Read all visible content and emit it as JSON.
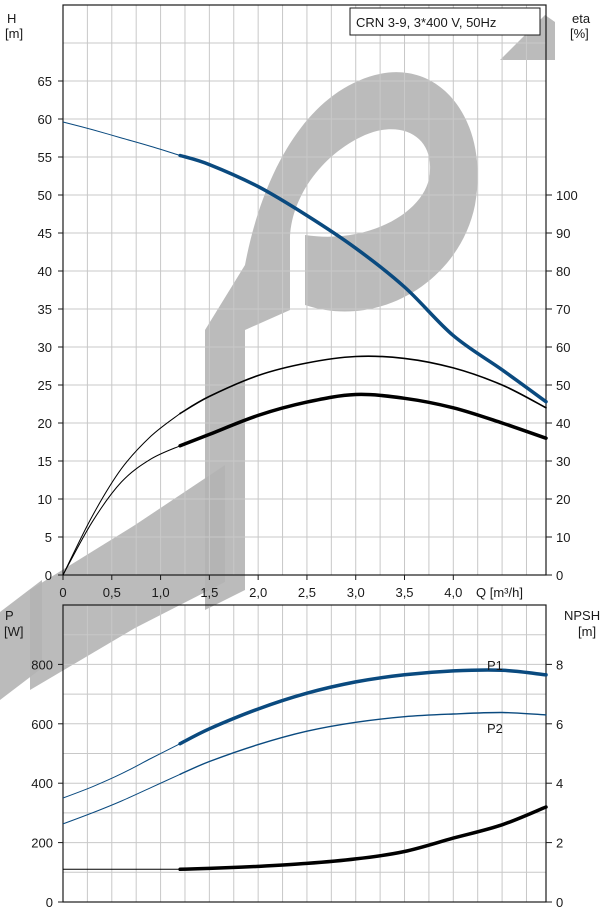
{
  "chart_data": [
    {
      "type": "line",
      "title": "CRN 3-9, 3*400 V, 50Hz",
      "xlabel": "Q [m³/h]",
      "ylabel_left": [
        "H",
        "[m]"
      ],
      "ylabel_right": [
        "eta",
        "[%]"
      ],
      "x_ticks": [
        "0",
        "0,5",
        "1,0",
        "1,5",
        "2,0",
        "2,5",
        "3,0",
        "3,5",
        "4,0"
      ],
      "x_range": [
        0,
        4.95
      ],
      "y_left_ticks": [
        "0",
        "5",
        "10",
        "15",
        "20",
        "25",
        "30",
        "35",
        "40",
        "45",
        "50",
        "55",
        "60",
        "65"
      ],
      "y_left_range": [
        0,
        75
      ],
      "y_right_ticks": [
        "0",
        "10",
        "20",
        "30",
        "40",
        "50",
        "60",
        "70",
        "80",
        "90",
        "100"
      ],
      "y_right_range": [
        0,
        150
      ],
      "grid": true,
      "series": [
        {
          "axis": "left",
          "color": "#0a4a7f",
          "style": "head",
          "x": [
            0,
            0.3,
            0.6,
            0.9,
            1.2,
            1.5,
            2.0,
            2.5,
            3.0,
            3.5,
            4.0,
            4.5,
            4.95
          ],
          "y": [
            59.6,
            58.6,
            57.5,
            56.4,
            55.2,
            54.0,
            51.1,
            47.3,
            43.0,
            37.9,
            31.5,
            27.0,
            22.8
          ]
        },
        {
          "axis": "right",
          "color": "#000000",
          "style": "eta-thin",
          "x": [
            0,
            0.3,
            0.6,
            0.9,
            1.2,
            1.5,
            2.0,
            2.5,
            3.0,
            3.5,
            4.0,
            4.5,
            4.95
          ],
          "y": [
            0,
            15.5,
            28,
            36.5,
            42.5,
            47,
            52.5,
            55.8,
            57.5,
            57,
            54.5,
            50,
            44
          ]
        },
        {
          "axis": "right",
          "color": "#000000",
          "style": "eta-thick",
          "x": [
            0,
            0.3,
            0.6,
            0.9,
            1.2,
            1.5,
            2.0,
            2.5,
            3.0,
            3.5,
            4.0,
            4.5,
            4.95
          ],
          "y": [
            0,
            14,
            24.5,
            30.5,
            34,
            37,
            42,
            45.5,
            47.5,
            46.5,
            44,
            40,
            36
          ]
        }
      ]
    },
    {
      "type": "line",
      "ylabel_left": [
        "P",
        "[W]"
      ],
      "ylabel_right": [
        "NPSH",
        "[m]"
      ],
      "x_range": [
        0,
        4.95
      ],
      "y_left_ticks": [
        "0",
        "200",
        "400",
        "600",
        "800"
      ],
      "y_left_range": [
        0,
        1000
      ],
      "y_right_ticks": [
        "0",
        "2",
        "4",
        "6",
        "8"
      ],
      "y_right_range": [
        0,
        10
      ],
      "grid": true,
      "series": [
        {
          "name": "P1",
          "axis": "left",
          "color": "#0a4a7f",
          "style": "p1",
          "x": [
            0,
            0.3,
            0.6,
            0.9,
            1.2,
            1.5,
            2.0,
            2.5,
            3.0,
            3.5,
            4.0,
            4.5,
            4.95
          ],
          "y": [
            350,
            388,
            432,
            483,
            533,
            583,
            650,
            703,
            741,
            765,
            778,
            780,
            765
          ]
        },
        {
          "name": "P2",
          "axis": "left",
          "color": "#0a4a7f",
          "style": "p2",
          "x": [
            0,
            0.3,
            0.6,
            0.9,
            1.2,
            1.5,
            2.0,
            2.5,
            3.0,
            3.5,
            4.0,
            4.5,
            4.95
          ],
          "y": [
            263,
            300,
            340,
            385,
            430,
            473,
            530,
            575,
            605,
            624,
            633,
            638,
            630
          ]
        },
        {
          "axis": "right",
          "color": "#000000",
          "style": "npsh",
          "x": [
            0,
            0.6,
            1.2,
            1.5,
            2.0,
            2.5,
            3.0,
            3.5,
            4.0,
            4.5,
            4.95
          ],
          "y": [
            1.1,
            1.1,
            1.1,
            1.13,
            1.2,
            1.3,
            1.45,
            1.7,
            2.15,
            2.6,
            3.2
          ]
        }
      ]
    }
  ]
}
